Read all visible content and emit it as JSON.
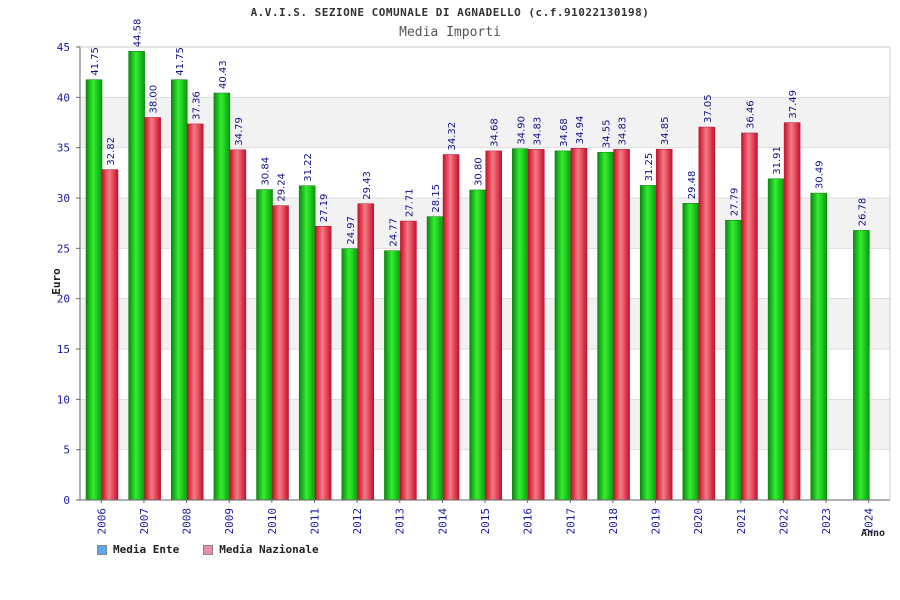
{
  "header": {
    "title": "A.V.I.S. SEZIONE COMUNALE DI AGNADELLO (c.f.91022130198)",
    "subtitle": "Media Importi"
  },
  "legend": {
    "ente_label": "Media Ente",
    "nazionale_label": "Media Nazionale",
    "ente_color": "#5aa9f0",
    "nazionale_color": "#e58fb3"
  },
  "chart_data": {
    "type": "bar",
    "title": "A.V.I.S. SEZIONE COMUNALE DI AGNADELLO (c.f.91022130198)",
    "subtitle": "Media Importi",
    "xlabel": "Anno",
    "ylabel": "Euro",
    "ylim": [
      0,
      45
    ],
    "yticks": [
      0,
      5,
      10,
      15,
      20,
      25,
      30,
      35,
      40,
      45
    ],
    "grid": true,
    "categories": [
      "2006",
      "2007",
      "2008",
      "2009",
      "2010",
      "2011",
      "2012",
      "2013",
      "2014",
      "2015",
      "2016",
      "2017",
      "2018",
      "2019",
      "2020",
      "2021",
      "2022",
      "2023",
      "2024"
    ],
    "series": [
      {
        "name": "Media Ente",
        "color": "#11bb11",
        "values": [
          41.75,
          44.58,
          41.75,
          40.43,
          30.84,
          31.22,
          24.97,
          24.77,
          28.15,
          30.8,
          34.9,
          34.68,
          34.55,
          31.25,
          29.48,
          27.79,
          31.91,
          30.49,
          26.78
        ],
        "labels": [
          "41.75",
          "44.58",
          "41.75",
          "40.43",
          "30.84",
          "31.22",
          "24.97",
          "24.77",
          "28.15",
          "30.80",
          "34.90",
          "34.68",
          "34.55",
          "31.25",
          "29.48",
          "27.79",
          "31.91",
          "30.49",
          "26.78"
        ]
      },
      {
        "name": "Media Nazionale",
        "color": "#dd2a3a",
        "values": [
          32.82,
          38.0,
          37.36,
          34.79,
          29.24,
          27.19,
          29.43,
          27.71,
          34.32,
          34.68,
          34.83,
          34.94,
          34.83,
          34.85,
          37.05,
          36.46,
          37.49,
          null,
          null
        ],
        "labels": [
          "32.82",
          "38.00",
          "37.36",
          "34.79",
          "29.24",
          "27.19",
          "29.43",
          "27.71",
          "34.32",
          "34.68",
          "34.83",
          "34.94",
          "34.83",
          "34.85",
          "37.05",
          "36.46",
          "37.49",
          null,
          null
        ]
      }
    ]
  }
}
